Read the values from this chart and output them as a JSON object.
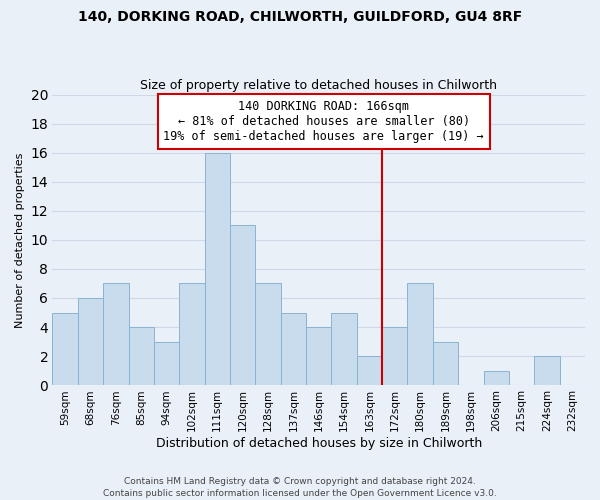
{
  "title": "140, DORKING ROAD, CHILWORTH, GUILDFORD, GU4 8RF",
  "subtitle": "Size of property relative to detached houses in Chilworth",
  "xlabel": "Distribution of detached houses by size in Chilworth",
  "ylabel": "Number of detached properties",
  "bar_labels": [
    "59sqm",
    "68sqm",
    "76sqm",
    "85sqm",
    "94sqm",
    "102sqm",
    "111sqm",
    "120sqm",
    "128sqm",
    "137sqm",
    "146sqm",
    "154sqm",
    "163sqm",
    "172sqm",
    "180sqm",
    "189sqm",
    "198sqm",
    "206sqm",
    "215sqm",
    "224sqm",
    "232sqm"
  ],
  "bar_values": [
    5,
    6,
    7,
    4,
    3,
    7,
    16,
    11,
    7,
    5,
    4,
    5,
    2,
    4,
    7,
    3,
    0,
    1,
    0,
    2,
    0
  ],
  "bar_color": "#c9dcee",
  "bar_edge_color": "#8ab4d4",
  "vline_color": "#cc0000",
  "annotation_text": "140 DORKING ROAD: 166sqm\n← 81% of detached houses are smaller (80)\n19% of semi-detached houses are larger (19) →",
  "annotation_box_color": "white",
  "annotation_box_edge_color": "#cc0000",
  "ylim": [
    0,
    20
  ],
  "yticks": [
    0,
    2,
    4,
    6,
    8,
    10,
    12,
    14,
    16,
    18,
    20
  ],
  "grid_color": "#d0d8e8",
  "background_color": "#eaf0f8",
  "footer_text": "Contains HM Land Registry data © Crown copyright and database right 2024.\nContains public sector information licensed under the Open Government Licence v3.0.",
  "title_fontsize": 10,
  "subtitle_fontsize": 9,
  "xlabel_fontsize": 9,
  "ylabel_fontsize": 8,
  "tick_fontsize": 7.5,
  "annotation_fontsize": 8.5,
  "footer_fontsize": 6.5
}
